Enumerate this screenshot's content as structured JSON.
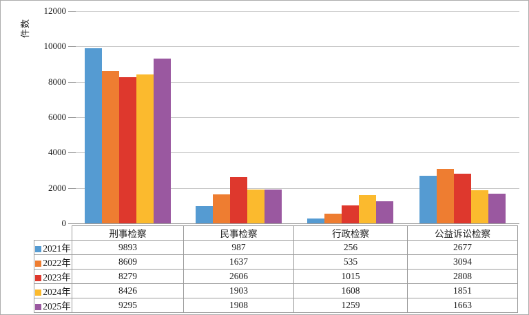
{
  "chart_data": {
    "type": "bar",
    "title": "",
    "ylabel": "件数",
    "xlabel": "",
    "categories": [
      "刑事检察",
      "民事检察",
      "行政检察",
      "公益诉讼检察"
    ],
    "series": [
      {
        "name": "2021年",
        "color": "#559bd2",
        "values": [
          9893,
          987,
          256,
          2677
        ]
      },
      {
        "name": "2022年",
        "color": "#ee7d31",
        "values": [
          8609,
          1637,
          535,
          3094
        ]
      },
      {
        "name": "2023年",
        "color": "#de382d",
        "values": [
          8279,
          2606,
          1015,
          2808
        ]
      },
      {
        "name": "2024年",
        "color": "#fbba2e",
        "values": [
          8426,
          1903,
          1608,
          1851
        ]
      },
      {
        "name": "2025年",
        "color": "#9a58a0",
        "values": [
          9295,
          1908,
          1259,
          1663
        ]
      }
    ],
    "ylim": [
      0,
      12000
    ],
    "ytick_interval": 2000,
    "yticks": [
      "0",
      "2000",
      "4000",
      "6000",
      "8000",
      "10000",
      "12000"
    ],
    "grid": "horizontal",
    "grid_color": "#c9c9c9",
    "axis_color": "#9b9b9b",
    "legend_position": "table-left-column",
    "table_shows_values": true
  }
}
